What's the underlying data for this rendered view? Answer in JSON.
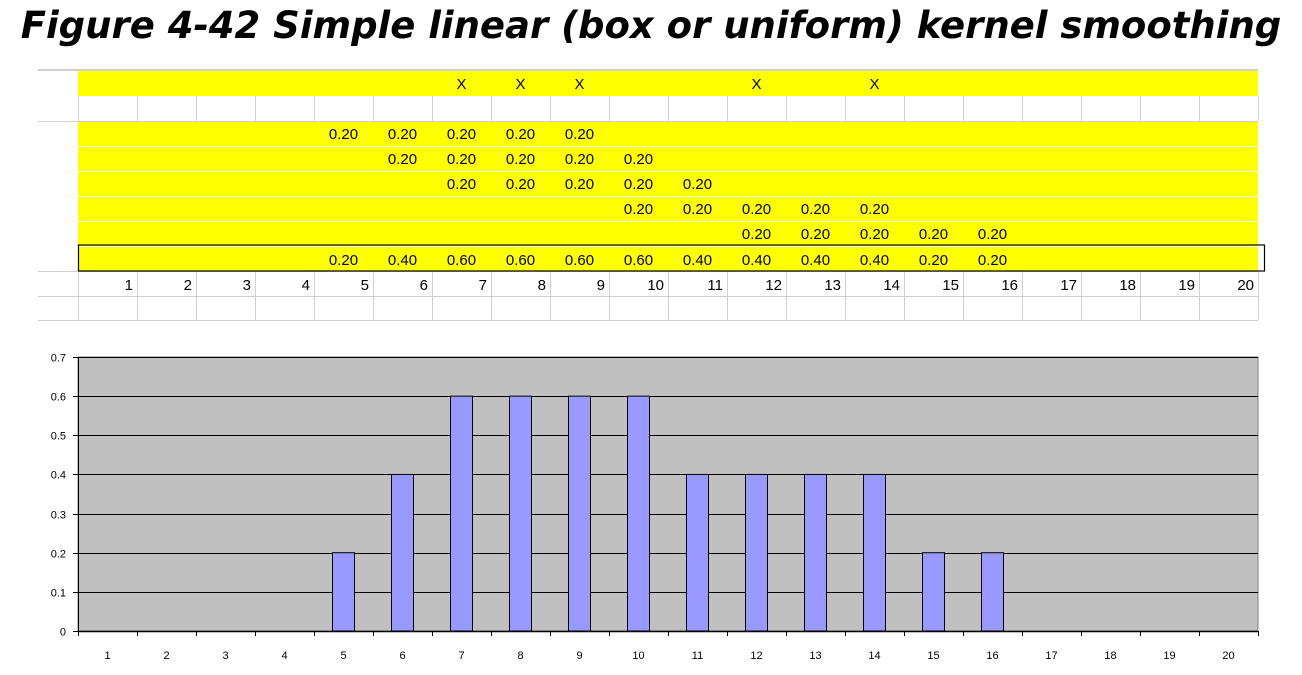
{
  "title": "Figure 4-42 Simple linear (box or uniform) kernel smoothing",
  "colors": {
    "highlight": "#ffff00",
    "bar_fill": "#9999ff",
    "plot_background": "#c0c0c0",
    "grid": "#000000"
  },
  "spreadsheet": {
    "marker": "X",
    "marker_columns": [
      7,
      8,
      9,
      12,
      14
    ],
    "weight_rows": [
      {
        "start": 5,
        "values": [
          "0.20",
          "0.20",
          "0.20",
          "0.20",
          "0.20"
        ]
      },
      {
        "start": 6,
        "values": [
          "0.20",
          "0.20",
          "0.20",
          "0.20",
          "0.20"
        ]
      },
      {
        "start": 7,
        "values": [
          "0.20",
          "0.20",
          "0.20",
          "0.20",
          "0.20"
        ]
      },
      {
        "start": 10,
        "values": [
          "0.20",
          "0.20",
          "0.20",
          "0.20",
          "0.20"
        ]
      },
      {
        "start": 12,
        "values": [
          "0.20",
          "0.20",
          "0.20",
          "0.20",
          "0.20"
        ]
      }
    ],
    "sum_row": {
      "start": 5,
      "values": [
        "0.20",
        "0.40",
        "0.60",
        "0.60",
        "0.60",
        "0.60",
        "0.40",
        "0.40",
        "0.40",
        "0.40",
        "0.20",
        "0.20"
      ]
    },
    "column_numbers": [
      "1",
      "2",
      "3",
      "4",
      "5",
      "6",
      "7",
      "8",
      "9",
      "10",
      "11",
      "12",
      "13",
      "14",
      "15",
      "16",
      "17",
      "18",
      "19",
      "20"
    ]
  },
  "chart_data": {
    "type": "bar",
    "categories": [
      "1",
      "2",
      "3",
      "4",
      "5",
      "6",
      "7",
      "8",
      "9",
      "10",
      "11",
      "12",
      "13",
      "14",
      "15",
      "16",
      "17",
      "18",
      "19",
      "20"
    ],
    "values": [
      0,
      0,
      0,
      0,
      0.2,
      0.4,
      0.6,
      0.6,
      0.6,
      0.6,
      0.4,
      0.4,
      0.4,
      0.4,
      0.2,
      0.2,
      0,
      0,
      0,
      0
    ],
    "yticks": [
      "0",
      "0.1",
      "0.2",
      "0.3",
      "0.4",
      "0.5",
      "0.6",
      "0.7"
    ],
    "ylim": [
      0,
      0.7
    ],
    "grid": true,
    "legend": "none"
  }
}
